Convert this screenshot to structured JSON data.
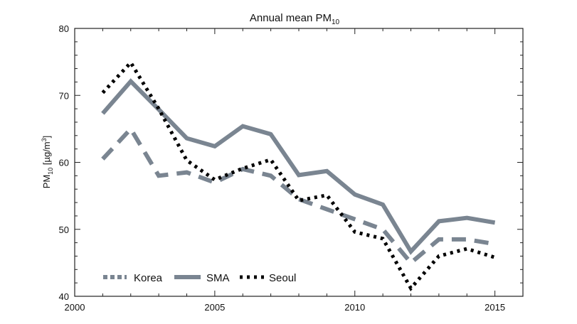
{
  "chart_data": {
    "type": "line",
    "title": "Annual mean PM",
    "title_subscript": "10",
    "ylabel": "PM",
    "ylabel_subscript": "10",
    "ylabel_unit": " [µg/m",
    "ylabel_unit_sup": "3",
    "ylabel_unit_close": "]",
    "xlabel": "",
    "xlim": [
      2000,
      2016
    ],
    "ylim": [
      40,
      80
    ],
    "x_ticks": [
      "2000",
      "2005",
      "2010",
      "2015"
    ],
    "y_ticks": [
      "40",
      "50",
      "60",
      "70",
      "80"
    ],
    "grid": false,
    "legend_position": "bottom-left",
    "x": [
      2001,
      2002,
      2003,
      2004,
      2005,
      2006,
      2007,
      2008,
      2009,
      2010,
      2011,
      2012,
      2013,
      2014,
      2015
    ],
    "series": [
      {
        "name": "Korea",
        "color": "#7a8591",
        "style": "dashed",
        "values": [
          60.5,
          65.0,
          58.0,
          58.5,
          57.0,
          59.0,
          58.0,
          54.5,
          53.0,
          51.5,
          50.0,
          45.0,
          48.5,
          48.5,
          47.8
        ]
      },
      {
        "name": "SMA",
        "color": "#7a8591",
        "style": "solid",
        "values": [
          67.3,
          72.1,
          67.9,
          63.6,
          62.4,
          65.4,
          64.2,
          58.1,
          58.7,
          55.2,
          53.7,
          46.7,
          51.2,
          51.7,
          51.0
        ]
      },
      {
        "name": "Seoul",
        "color": "#000000",
        "style": "dotted",
        "values": [
          70.4,
          74.9,
          68.0,
          60.3,
          57.4,
          59.1,
          60.4,
          54.3,
          55.1,
          49.6,
          48.6,
          41.2,
          46.0,
          47.1,
          45.8
        ]
      }
    ]
  }
}
